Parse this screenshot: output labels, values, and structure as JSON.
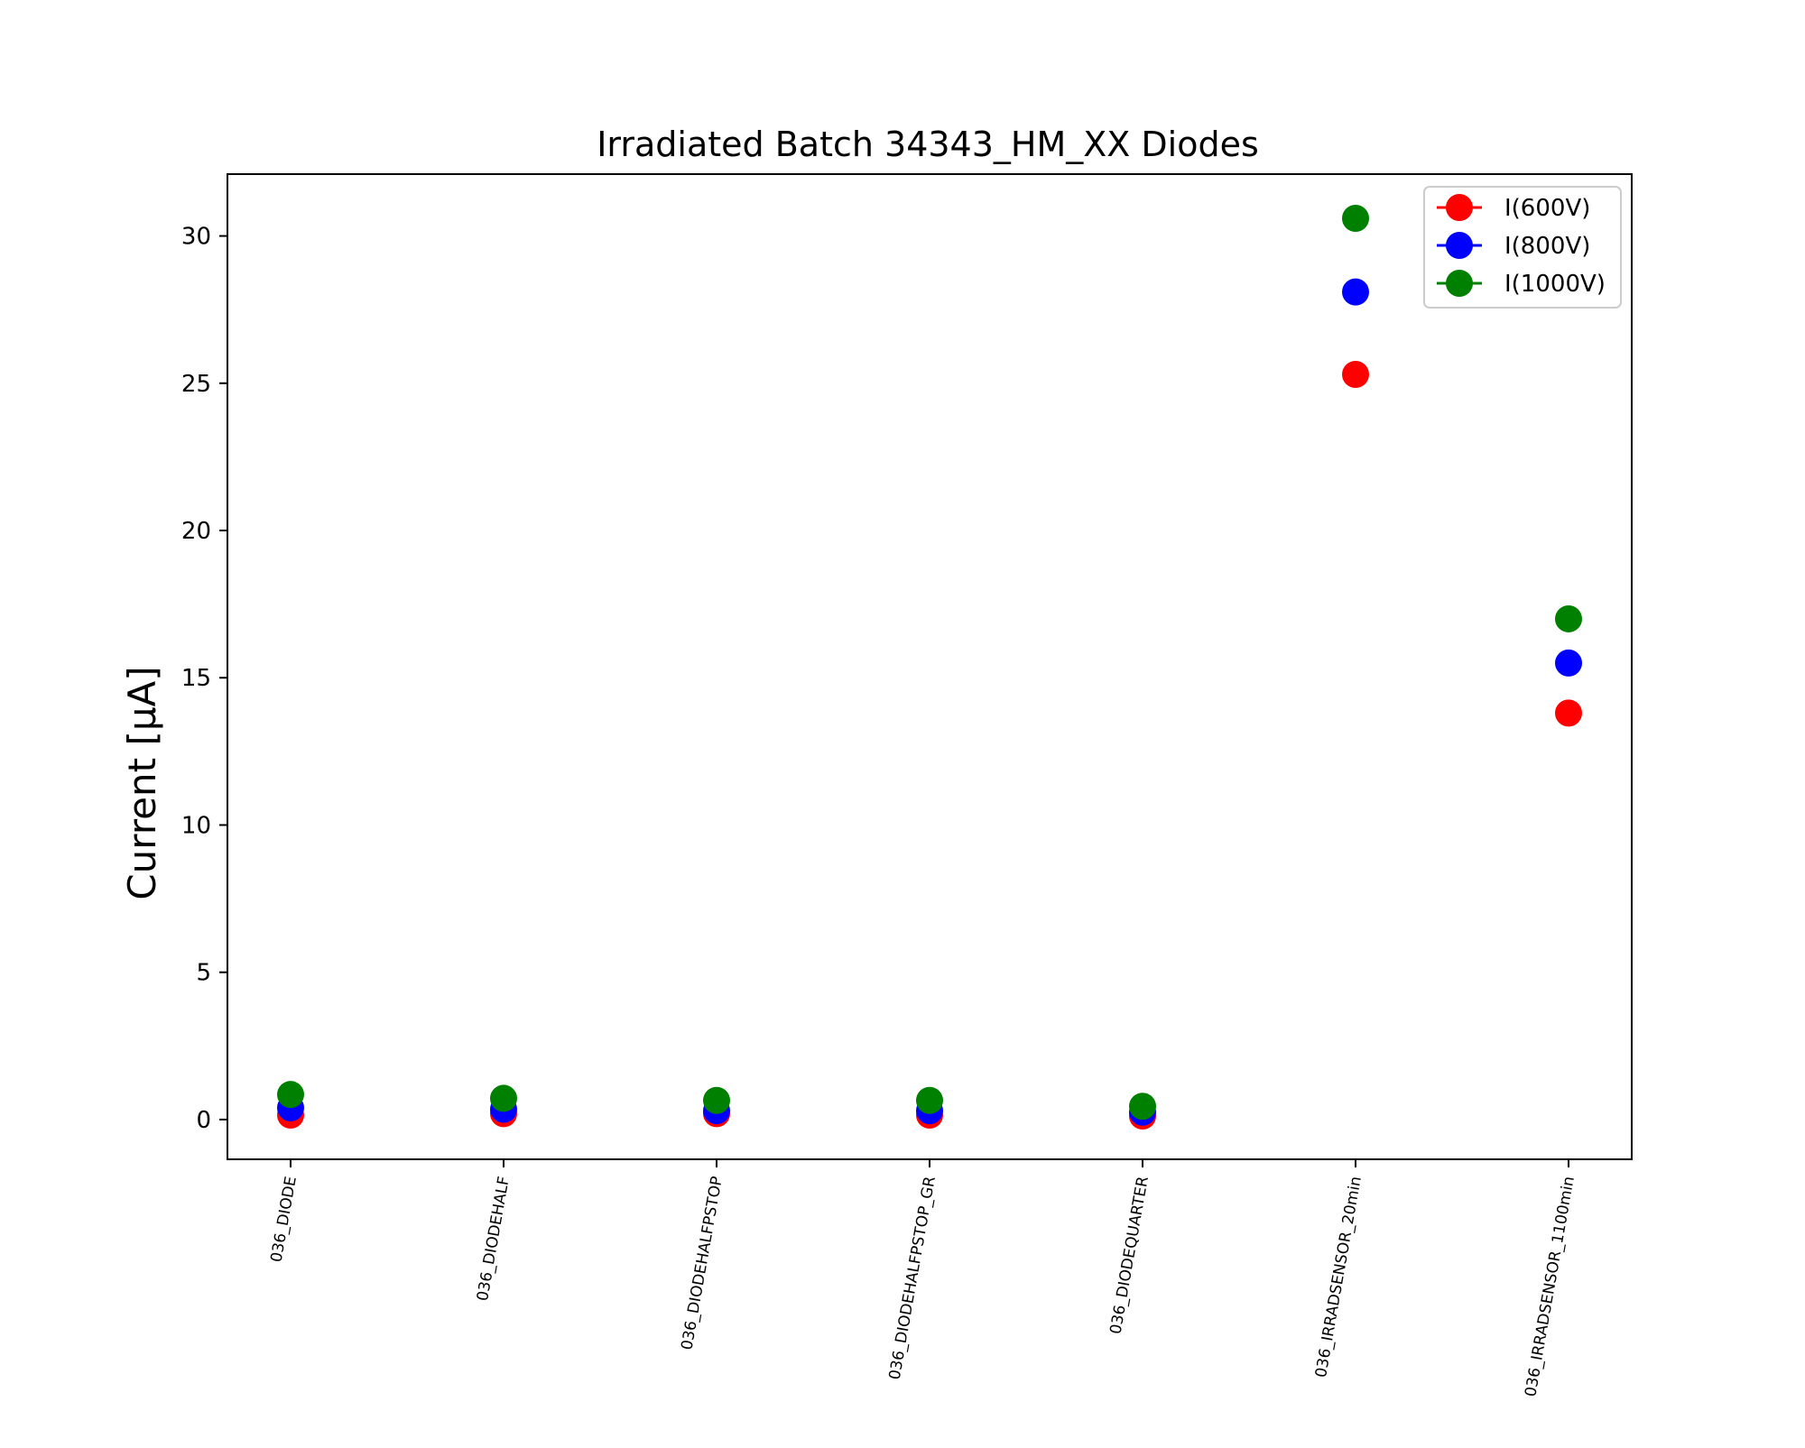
{
  "chart_data": {
    "type": "scatter",
    "title": "Irradiated Batch 34343_HM_XX Diodes",
    "xlabel": "",
    "ylabel": "Current [μA]",
    "ylim": [
      -1.35,
      32.1
    ],
    "yticks": [
      0,
      5,
      10,
      15,
      20,
      25,
      30
    ],
    "categories": [
      "036_DIODE",
      "036_DIODEHALF",
      "036_DIODEHALFPSTOP",
      "036_DIODEHALFPSTOP_GR",
      "036_DIODEQUARTER",
      "036_IRRADSENSOR_20min",
      "036_IRRADSENSOR_1100min"
    ],
    "series": [
      {
        "name": "I(600V)",
        "color": "#ff0000",
        "values": [
          0.15,
          0.2,
          0.2,
          0.15,
          0.12,
          25.3,
          13.8
        ]
      },
      {
        "name": "I(800V)",
        "color": "#0000ff",
        "values": [
          0.4,
          0.35,
          0.3,
          0.3,
          0.25,
          28.1,
          15.5
        ]
      },
      {
        "name": "I(1000V)",
        "color": "#008000",
        "values": [
          0.85,
          0.72,
          0.65,
          0.65,
          0.45,
          30.6,
          17.0
        ]
      }
    ],
    "legend_position": "top-right",
    "grid": false
  }
}
